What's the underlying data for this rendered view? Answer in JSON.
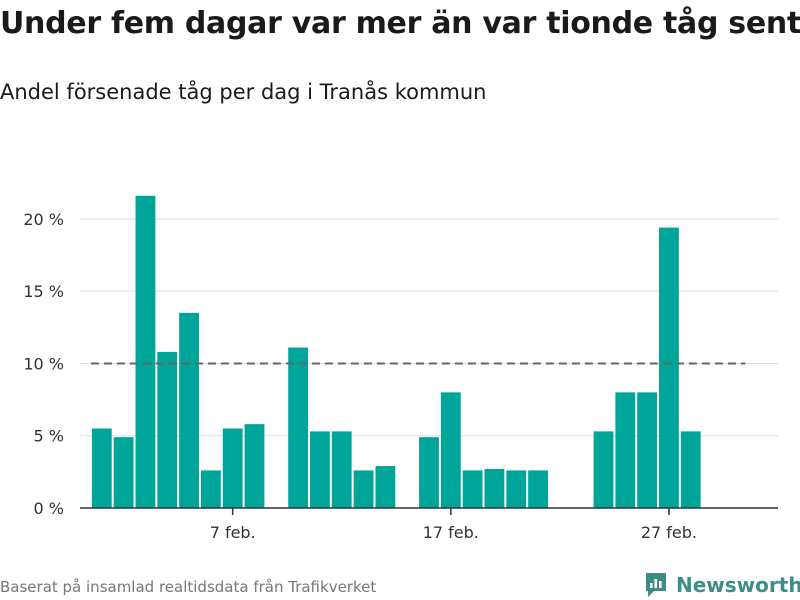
{
  "header": {
    "title": "Under fem dagar var mer än var tionde tåg sent",
    "subtitle": "Andel försenade tåg per dag i Tranås kommun"
  },
  "footer": {
    "source": "Baserat på insamlad realtidsdata från Trafikverket",
    "brand": "Newsworthy"
  },
  "colors": {
    "bar": "#00a59a",
    "reference_line": "#666666",
    "grid": "#dddddd",
    "axis": "#333333",
    "brand": "#3d8d86"
  },
  "icons": {
    "brand_logo": "newsworthy-logo-icon"
  },
  "chart_data": {
    "type": "bar",
    "x": [
      "2024-02-01",
      "2024-02-02",
      "2024-02-03",
      "2024-02-04",
      "2024-02-05",
      "2024-02-06",
      "2024-02-07",
      "2024-02-08",
      "2024-02-10",
      "2024-02-11",
      "2024-02-12",
      "2024-02-13",
      "2024-02-14",
      "2024-02-16",
      "2024-02-17",
      "2024-02-18",
      "2024-02-19",
      "2024-02-20",
      "2024-02-21",
      "2024-02-24",
      "2024-02-25",
      "2024-02-26",
      "2024-02-27",
      "2024-02-28"
    ],
    "values": [
      5.5,
      4.9,
      21.6,
      10.8,
      13.5,
      2.6,
      5.5,
      5.8,
      11.1,
      5.3,
      5.3,
      2.6,
      2.9,
      4.9,
      8.0,
      2.6,
      2.7,
      2.6,
      2.6,
      5.3,
      8.0,
      8.0,
      19.4,
      5.3
    ],
    "x_range": [
      "2024-01-31",
      "2024-03-03"
    ],
    "x_ticks": [
      {
        "date": "2024-02-07",
        "label": "7 feb."
      },
      {
        "date": "2024-02-17",
        "label": "17 feb."
      },
      {
        "date": "2024-02-27",
        "label": "27 feb."
      }
    ],
    "y_ticks": [
      {
        "value": 0,
        "label": "0 %"
      },
      {
        "value": 5,
        "label": "5 %"
      },
      {
        "value": 10,
        "label": "10 %"
      },
      {
        "value": 15,
        "label": "15 %"
      },
      {
        "value": 20,
        "label": "20 %"
      }
    ],
    "ylim": [
      0,
      22
    ],
    "reference_line": {
      "value": 10,
      "style": "dashed",
      "from": "2024-02-01",
      "to": "2024-03-02"
    },
    "grid": true,
    "title": "Under fem dagar var mer än var tionde tåg sent",
    "subtitle": "Andel försenade tåg per dag i Tranås kommun",
    "xlabel": "",
    "ylabel": ""
  }
}
